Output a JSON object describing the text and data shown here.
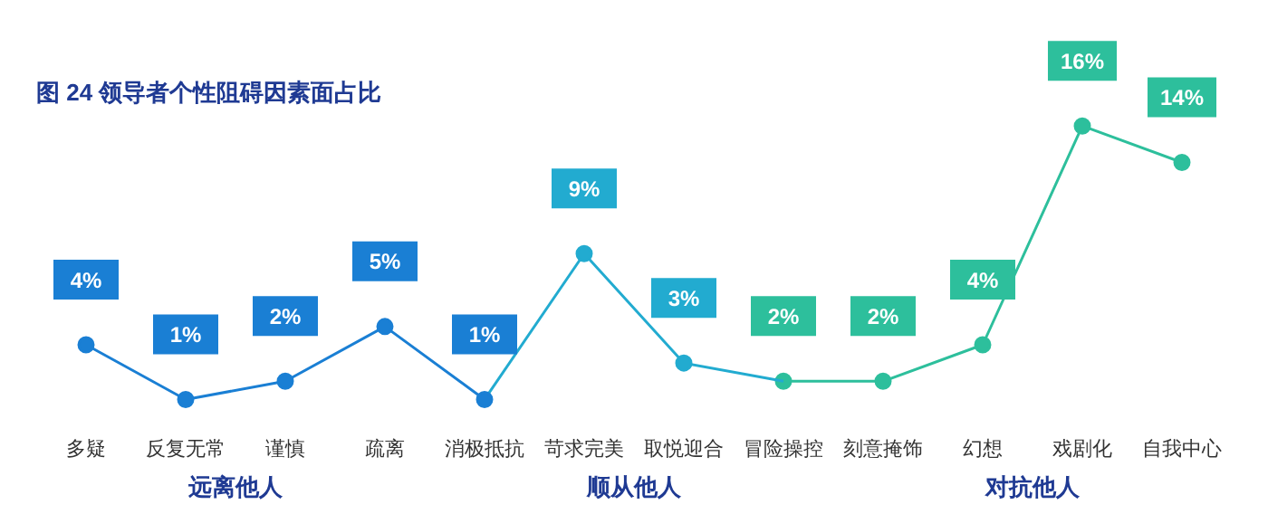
{
  "chart_data": {
    "type": "line",
    "title": "图 24 领导者个性阻碍因素面占比",
    "categories": [
      "多疑",
      "反复无常",
      "谨慎",
      "疏离",
      "消极抵抗",
      "苛求完美",
      "取悦迎合",
      "冒险操控",
      "刻意掩饰",
      "幻想",
      "戏剧化",
      "自我中心"
    ],
    "series": [
      {
        "color": "#1a7fd4",
        "values": [
          4,
          1,
          2,
          5,
          1,
          null,
          null,
          null,
          null,
          null,
          null,
          null
        ],
        "value_labels": [
          "4%",
          "1%",
          "2%",
          "5%",
          "1%",
          null,
          null,
          null,
          null,
          null,
          null,
          null
        ]
      },
      {
        "color": "#22abd0",
        "values": [
          null,
          null,
          null,
          null,
          1,
          9,
          3,
          2,
          null,
          null,
          null,
          null
        ],
        "value_labels": [
          null,
          null,
          null,
          null,
          null,
          "9%",
          "3%",
          null,
          null,
          null,
          null,
          null
        ]
      },
      {
        "color": "#2dbf9c",
        "values": [
          null,
          null,
          null,
          null,
          null,
          null,
          null,
          2,
          2,
          4,
          16,
          14
        ],
        "value_labels": [
          null,
          null,
          null,
          null,
          null,
          null,
          null,
          "2%",
          "2%",
          "4%",
          "16%",
          "14%"
        ]
      }
    ],
    "marker": "circle",
    "grid": false,
    "legend": false,
    "tick_labels": "x",
    "annotations": [
      "远离他人",
      "顺从他人",
      "对抗他人"
    ]
  }
}
